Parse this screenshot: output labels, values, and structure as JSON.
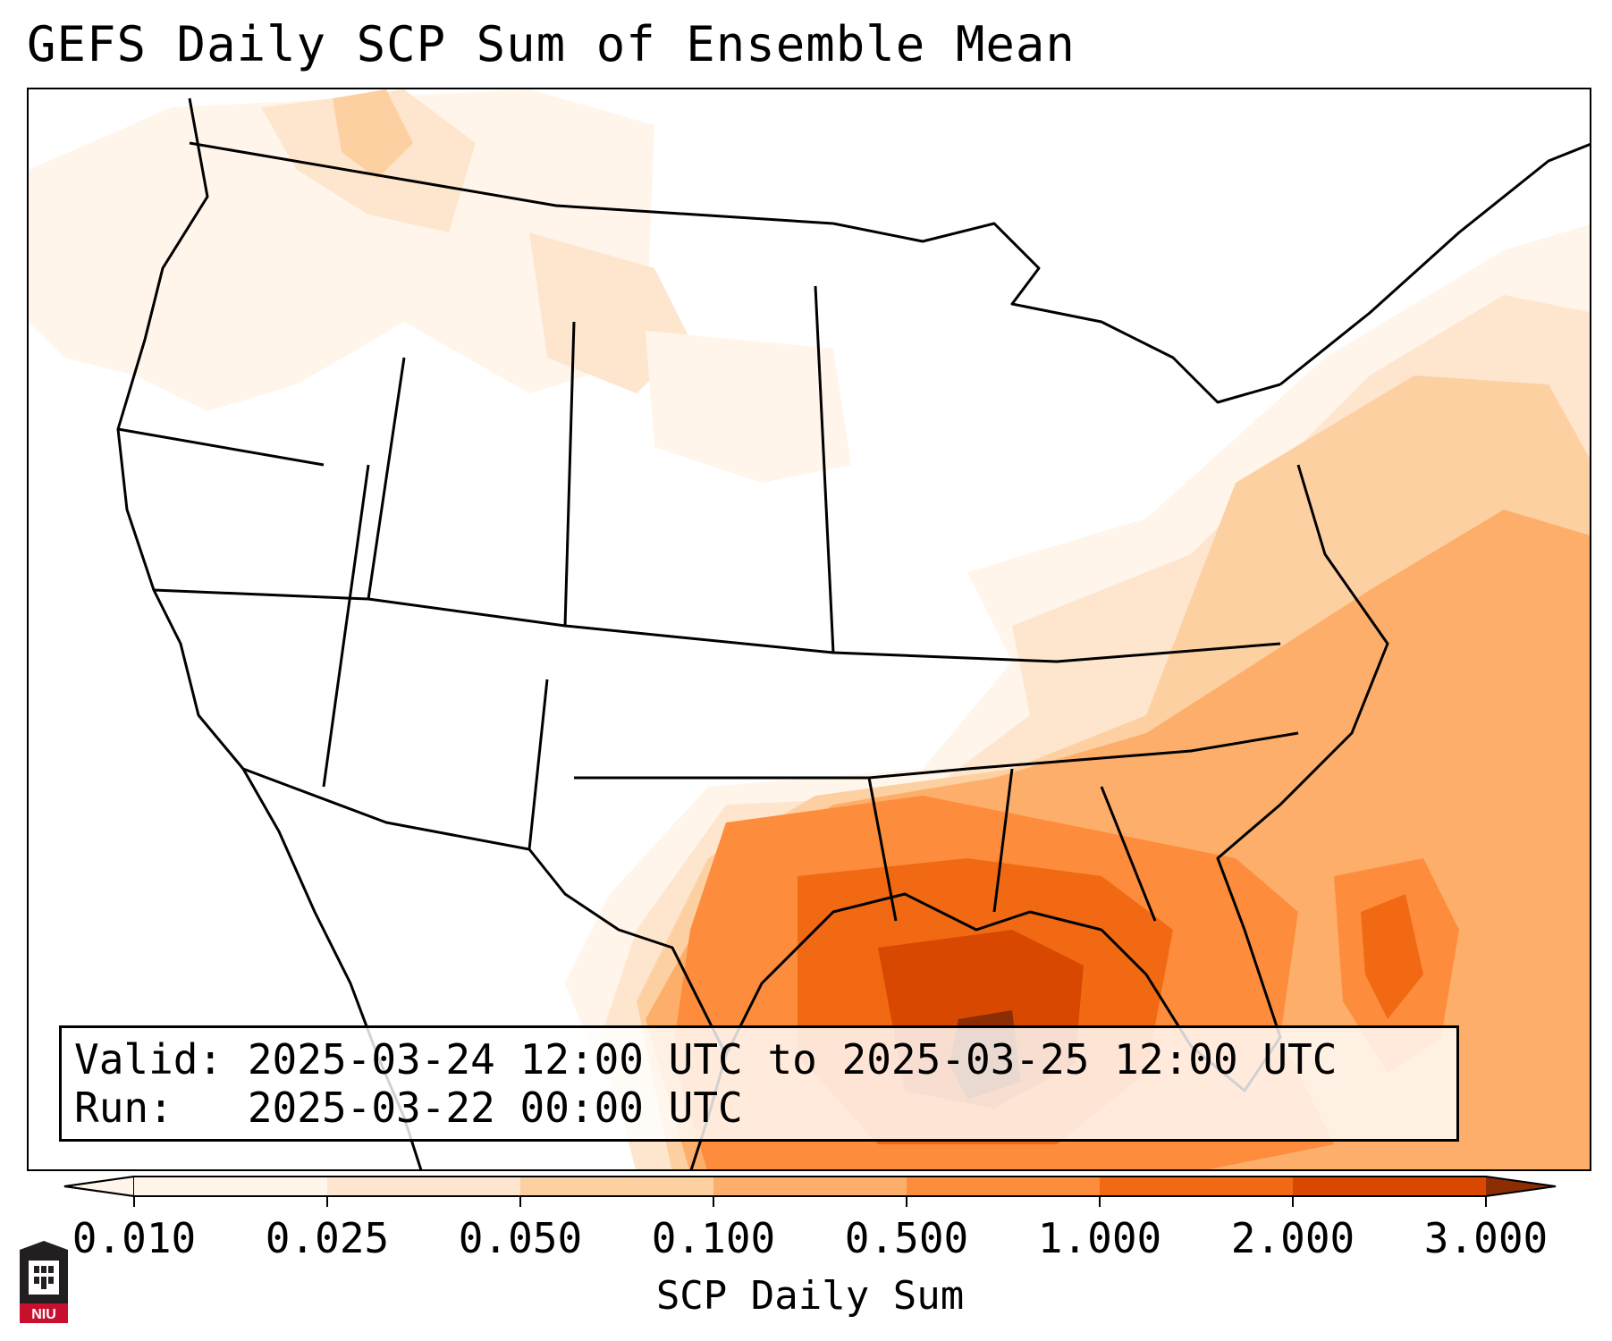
{
  "title": "GEFS Daily SCP Sum of Ensemble Mean",
  "info": {
    "valid_line": "Valid: 2025-03-24 12:00 UTC to 2025-03-25 12:00 UTC",
    "run_line": "Run:   2025-03-22 00:00 UTC"
  },
  "colorbar": {
    "label": "SCP Daily Sum",
    "ticks": [
      "0.010",
      "0.025",
      "0.050",
      "0.100",
      "0.500",
      "1.000",
      "2.000",
      "3.000"
    ],
    "colors": [
      "#fff5eb",
      "#fee6ce",
      "#fdd0a2",
      "#fdae6b",
      "#fd8d3c",
      "#f16913",
      "#d94801",
      "#8c2d04"
    ],
    "extend": "both"
  },
  "logo": {
    "text": "NIU",
    "colors": {
      "shield": "#231f20",
      "band": "#c8102e"
    }
  }
}
